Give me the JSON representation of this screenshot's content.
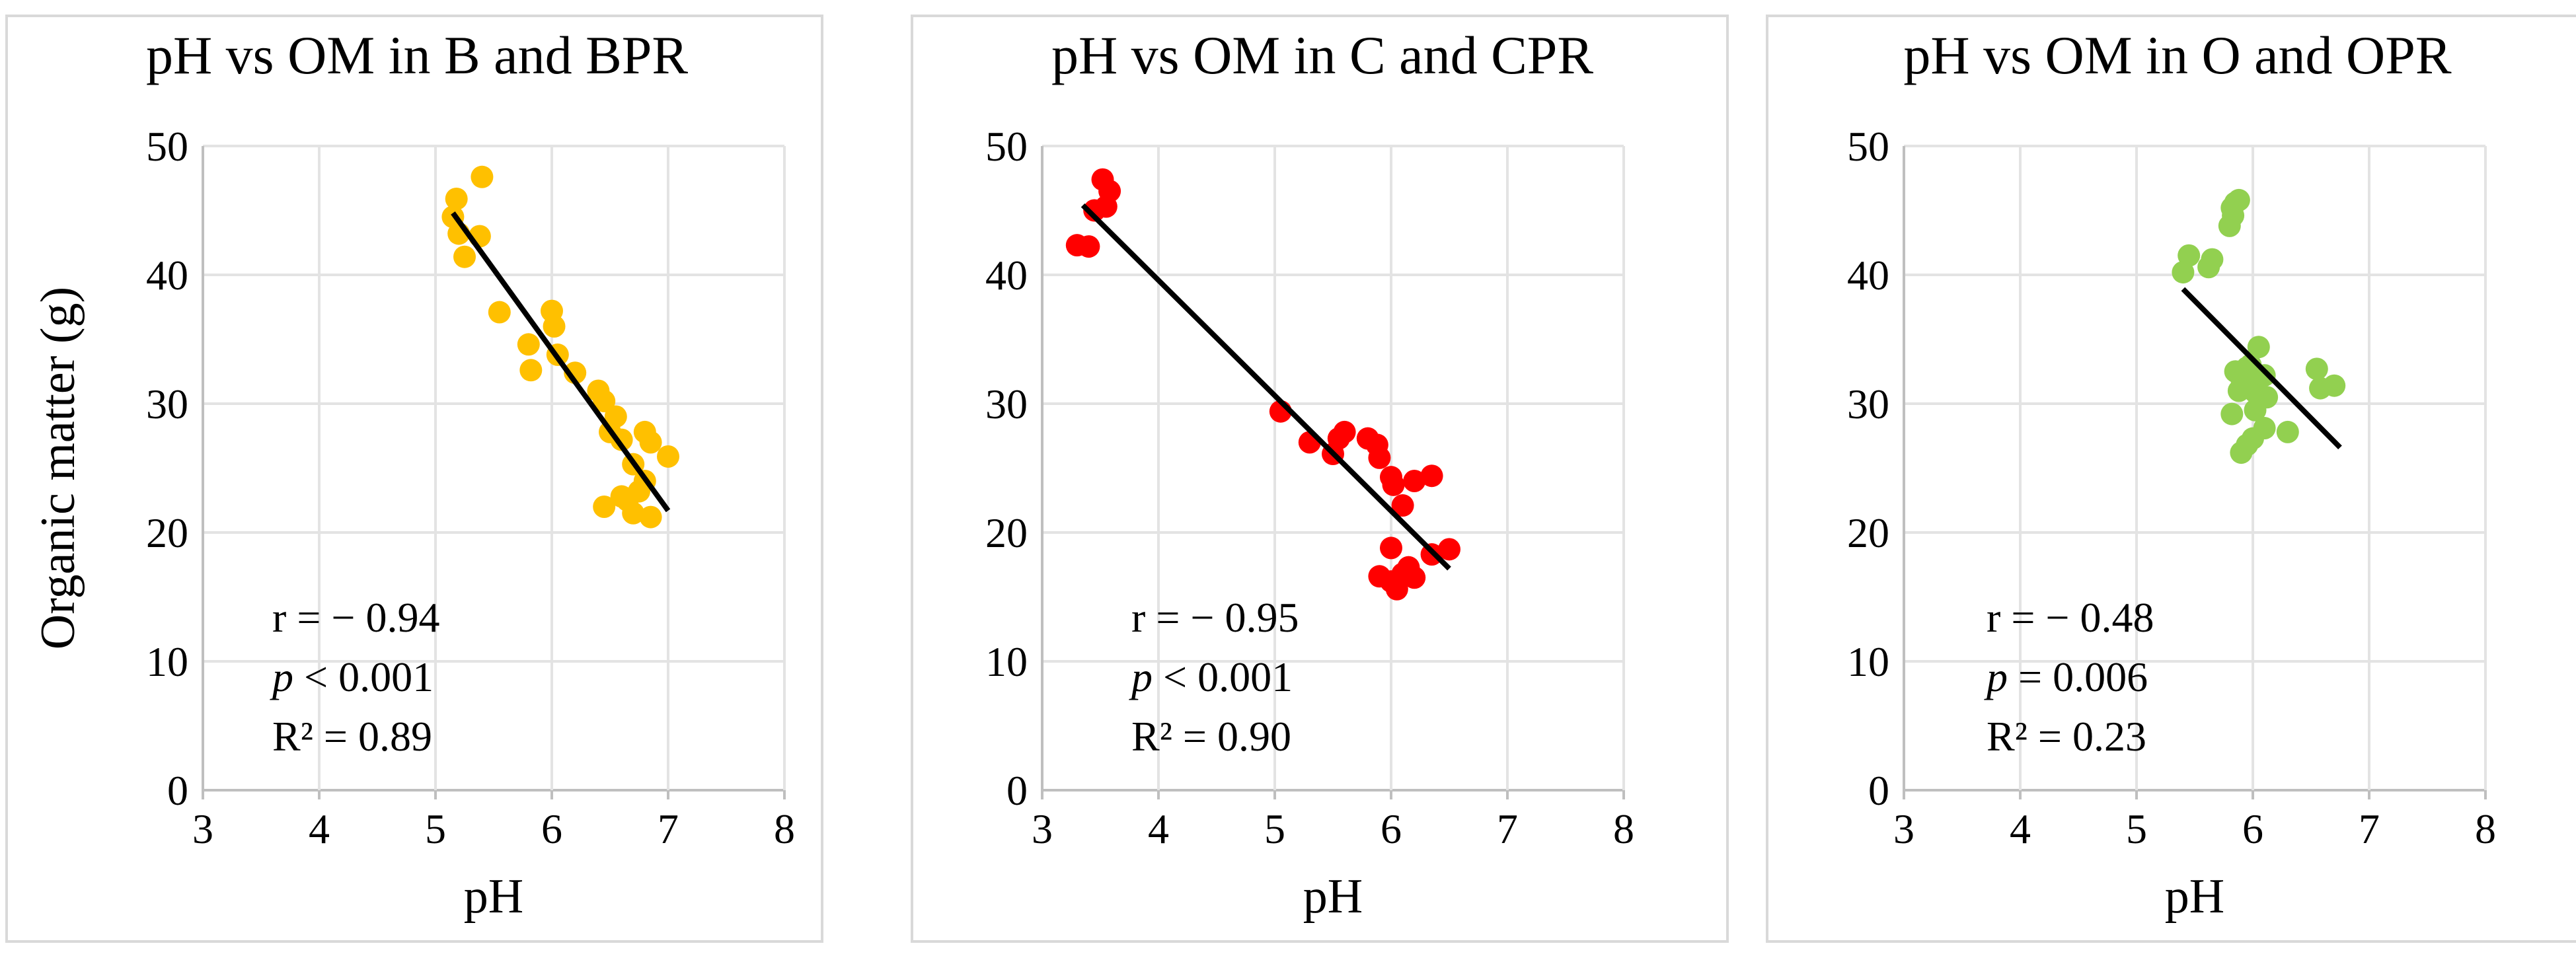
{
  "chart_data": [
    {
      "type": "scatter",
      "title": "pH vs OM in B and BPR",
      "xlabel": "pH",
      "ylabel": "Organic matter (g)",
      "xlim": [
        3,
        8
      ],
      "ylim": [
        0,
        50
      ],
      "xticks": [
        "3",
        "4",
        "5",
        "6",
        "7",
        "8"
      ],
      "yticks": [
        "0",
        "10",
        "20",
        "30",
        "40",
        "50"
      ],
      "color": "#FFC000",
      "points": [
        [
          5.15,
          44.5
        ],
        [
          5.18,
          45.9
        ],
        [
          5.2,
          43.2
        ],
        [
          5.25,
          41.4
        ],
        [
          5.4,
          47.6
        ],
        [
          5.38,
          43.0
        ],
        [
          5.55,
          37.1
        ],
        [
          5.8,
          34.6
        ],
        [
          5.82,
          32.6
        ],
        [
          6.0,
          37.2
        ],
        [
          6.02,
          36.0
        ],
        [
          6.05,
          33.8
        ],
        [
          6.2,
          32.4
        ],
        [
          6.4,
          31.0
        ],
        [
          6.45,
          30.2
        ],
        [
          6.55,
          29.0
        ],
        [
          6.5,
          27.8
        ],
        [
          6.6,
          27.2
        ],
        [
          6.7,
          25.3
        ],
        [
          6.8,
          27.8
        ],
        [
          6.85,
          27.0
        ],
        [
          7.0,
          25.9
        ],
        [
          6.45,
          22.0
        ],
        [
          6.65,
          22.5
        ],
        [
          6.7,
          21.5
        ],
        [
          6.75,
          23.2
        ],
        [
          6.85,
          21.2
        ],
        [
          6.8,
          24.0
        ],
        [
          6.6,
          22.8
        ]
      ],
      "trendline": {
        "x": [
          5.15,
          7.0
        ],
        "y": [
          44.8,
          21.7
        ]
      },
      "stats": {
        "r": "r = − 0.94",
        "p_symbol": "p",
        "p_rest": " < 0.001",
        "r2": "R² = 0.89"
      }
    },
    {
      "type": "scatter",
      "title": "pH vs OM in C and CPR",
      "xlabel": "pH",
      "ylabel": "",
      "xlim": [
        3,
        8
      ],
      "ylim": [
        0,
        50
      ],
      "xticks": [
        "3",
        "4",
        "5",
        "6",
        "7",
        "8"
      ],
      "yticks": [
        "0",
        "10",
        "20",
        "30",
        "40",
        "50"
      ],
      "color": "#FF0000",
      "points": [
        [
          3.3,
          42.3
        ],
        [
          3.4,
          42.2
        ],
        [
          3.45,
          45.0
        ],
        [
          3.52,
          47.4
        ],
        [
          3.55,
          45.3
        ],
        [
          3.58,
          46.5
        ],
        [
          5.05,
          29.4
        ],
        [
          5.3,
          27.0
        ],
        [
          5.5,
          26.1
        ],
        [
          5.55,
          27.3
        ],
        [
          5.6,
          27.8
        ],
        [
          5.8,
          27.3
        ],
        [
          5.88,
          26.8
        ],
        [
          5.9,
          25.8
        ],
        [
          6.0,
          24.3
        ],
        [
          6.02,
          23.7
        ],
        [
          6.1,
          22.1
        ],
        [
          6.2,
          24.0
        ],
        [
          6.35,
          24.4
        ],
        [
          5.9,
          16.6
        ],
        [
          6.0,
          18.8
        ],
        [
          6.05,
          15.6
        ],
        [
          6.1,
          16.8
        ],
        [
          6.15,
          17.3
        ],
        [
          6.2,
          16.5
        ],
        [
          6.0,
          16.2
        ],
        [
          6.35,
          18.3
        ],
        [
          6.5,
          18.7
        ]
      ],
      "trendline": {
        "x": [
          3.35,
          6.5
        ],
        "y": [
          45.4,
          17.2
        ]
      },
      "stats": {
        "r": "r = − 0.95",
        "p_symbol": "p",
        "p_rest": " < 0.001",
        "r2": "R² = 0.90"
      }
    },
    {
      "type": "scatter",
      "title": "pH vs OM in O and OPR",
      "xlabel": "pH",
      "ylabel": "",
      "xlim": [
        3,
        8
      ],
      "ylim": [
        0,
        50
      ],
      "xticks": [
        "3",
        "4",
        "5",
        "6",
        "7",
        "8"
      ],
      "yticks": [
        "0",
        "10",
        "20",
        "30",
        "40",
        "50"
      ],
      "color": "#92D050",
      "points": [
        [
          5.4,
          40.2
        ],
        [
          5.45,
          41.5
        ],
        [
          5.62,
          40.6
        ],
        [
          5.65,
          41.2
        ],
        [
          5.8,
          43.8
        ],
        [
          5.82,
          45.2
        ],
        [
          5.85,
          45.6
        ],
        [
          5.88,
          45.8
        ],
        [
          5.83,
          44.6
        ],
        [
          5.85,
          32.5
        ],
        [
          5.88,
          31.0
        ],
        [
          5.9,
          32.0
        ],
        [
          5.92,
          31.5
        ],
        [
          5.95,
          32.8
        ],
        [
          5.98,
          33.0
        ],
        [
          6.0,
          31.8
        ],
        [
          6.02,
          30.9
        ],
        [
          6.05,
          34.4
        ],
        [
          6.1,
          32.2
        ],
        [
          6.12,
          30.5
        ],
        [
          5.82,
          29.2
        ],
        [
          5.9,
          26.2
        ],
        [
          5.95,
          26.8
        ],
        [
          6.0,
          27.3
        ],
        [
          6.02,
          29.5
        ],
        [
          6.1,
          28.1
        ],
        [
          6.3,
          27.8
        ],
        [
          6.55,
          32.7
        ],
        [
          6.58,
          31.2
        ],
        [
          6.7,
          31.4
        ]
      ],
      "trendline": {
        "x": [
          5.4,
          6.75
        ],
        "y": [
          38.9,
          26.6
        ]
      },
      "stats": {
        "r": "r = − 0.48",
        "p_symbol": "p",
        "p_rest": " = 0.006",
        "r2": "R² = 0.23"
      }
    }
  ]
}
